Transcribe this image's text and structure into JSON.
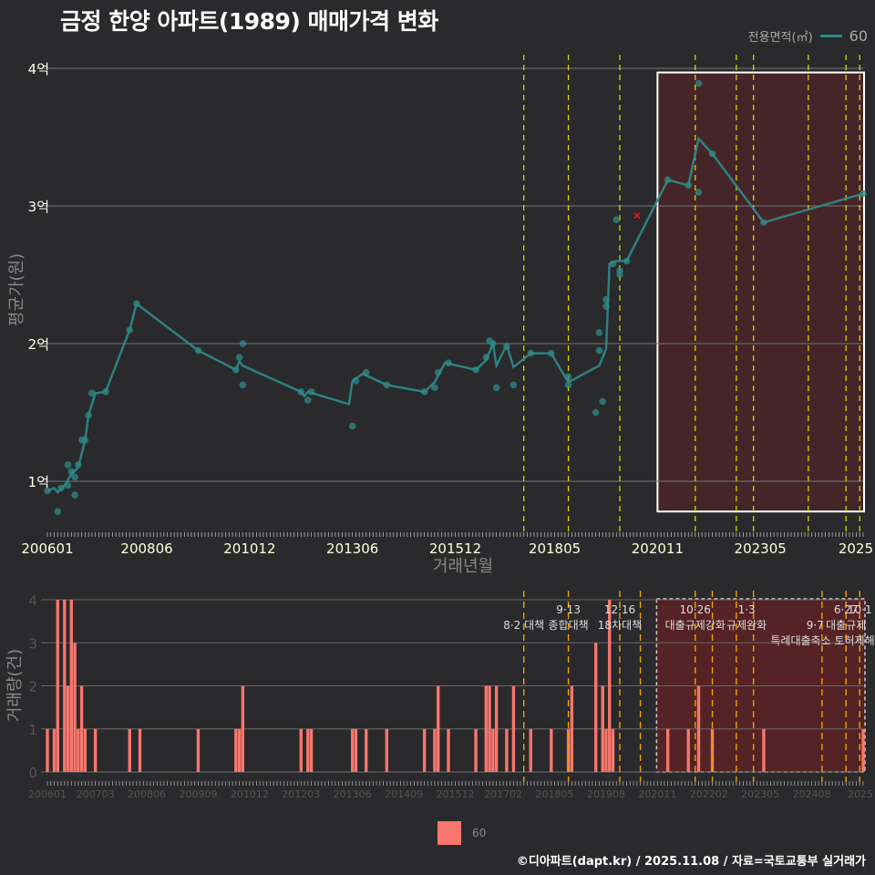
{
  "title": "금정 한양 아파트(1989) 매매가격 변화",
  "legend_top": {
    "title": "전용면적(㎡)",
    "label": "60",
    "color": "#2e8b8b"
  },
  "legend_bottom": {
    "label": "60",
    "color": "#f8766d"
  },
  "footer": "©디아파트(dapt.kr) / 2025.11.08 / 자료=국토교통부 실거래가",
  "chart_data": [
    {
      "type": "line",
      "title": "금정 한양 아파트(1989) 매매가격 변화",
      "xlabel": "거래년월",
      "ylabel": "평균가(원)",
      "x_tick_labels": [
        "200601",
        "200806",
        "201012",
        "201306",
        "201512",
        "201805",
        "202011",
        "202305",
        "2025"
      ],
      "y_tick_labels": [
        "1억",
        "2억",
        "3억",
        "4억"
      ],
      "ylim": [
        0.7,
        4.05
      ],
      "y_unit": "억원",
      "grid": true,
      "legend_position": "top-right",
      "series": [
        {
          "name": "60",
          "line": [
            [
              "2006-01",
              0.93
            ],
            [
              "2006-03",
              0.95
            ],
            [
              "2006-04",
              0.92
            ],
            [
              "2006-06",
              0.97
            ],
            [
              "2006-08",
              1.05
            ],
            [
              "2006-10",
              1.1
            ],
            [
              "2006-12",
              1.3
            ],
            [
              "2007-01",
              1.48
            ],
            [
              "2007-03",
              1.64
            ],
            [
              "2007-06",
              1.65
            ],
            [
              "2008-01",
              2.1
            ],
            [
              "2008-03",
              2.29
            ],
            [
              "2009-09",
              1.95
            ],
            [
              "2010-08",
              1.81
            ],
            [
              "2010-09",
              1.87
            ],
            [
              "2010-10",
              1.84
            ],
            [
              "2012-03",
              1.65
            ],
            [
              "2012-04",
              1.62
            ],
            [
              "2012-05",
              1.65
            ],
            [
              "2013-05",
              1.56
            ],
            [
              "2013-06",
              1.73
            ],
            [
              "2013-09",
              1.78
            ],
            [
              "2014-04",
              1.7
            ],
            [
              "2015-03",
              1.65
            ],
            [
              "2015-06",
              1.72
            ],
            [
              "2015-09",
              1.86
            ],
            [
              "2016-06",
              1.81
            ],
            [
              "2016-09",
              1.88
            ],
            [
              "2016-11",
              2.0
            ],
            [
              "2016-12",
              1.84
            ],
            [
              "2017-03",
              1.99
            ],
            [
              "2017-05",
              1.83
            ],
            [
              "2017-10",
              1.93
            ],
            [
              "2018-04",
              1.93
            ],
            [
              "2018-08",
              1.76
            ],
            [
              "2018-09",
              1.72
            ],
            [
              "2019-06",
              1.84
            ],
            [
              "2019-08",
              1.96
            ],
            [
              "2019-09",
              2.58
            ],
            [
              "2019-11",
              2.6
            ],
            [
              "2020-02",
              2.6
            ],
            [
              "2021-02",
              3.19
            ],
            [
              "2021-08",
              3.15
            ],
            [
              "2021-11",
              3.49
            ],
            [
              "2022-03",
              3.38
            ],
            [
              "2023-06",
              2.88
            ],
            [
              "2025-11",
              3.09
            ]
          ],
          "points": [
            [
              "2006-01",
              0.93
            ],
            [
              "2006-04",
              0.78
            ],
            [
              "2006-05",
              0.95
            ],
            [
              "2006-07",
              1.12
            ],
            [
              "2006-07",
              0.97
            ],
            [
              "2006-08",
              1.07
            ],
            [
              "2006-09",
              1.03
            ],
            [
              "2006-09",
              0.9
            ],
            [
              "2006-10",
              1.12
            ],
            [
              "2006-11",
              1.3
            ],
            [
              "2006-12",
              1.3
            ],
            [
              "2007-01",
              1.48
            ],
            [
              "2007-02",
              1.64
            ],
            [
              "2007-06",
              1.65
            ],
            [
              "2008-01",
              2.1
            ],
            [
              "2008-03",
              2.29
            ],
            [
              "2009-09",
              1.95
            ],
            [
              "2010-08",
              1.81
            ],
            [
              "2010-09",
              1.9
            ],
            [
              "2010-10",
              2.0
            ],
            [
              "2010-10",
              1.7
            ],
            [
              "2012-03",
              1.65
            ],
            [
              "2012-05",
              1.59
            ],
            [
              "2012-06",
              1.65
            ],
            [
              "2013-06",
              1.4
            ],
            [
              "2013-07",
              1.73
            ],
            [
              "2013-10",
              1.79
            ],
            [
              "2014-04",
              1.7
            ],
            [
              "2015-03",
              1.65
            ],
            [
              "2015-06",
              1.68
            ],
            [
              "2015-07",
              1.79
            ],
            [
              "2015-10",
              1.86
            ],
            [
              "2016-06",
              1.81
            ],
            [
              "2016-09",
              1.9
            ],
            [
              "2016-10",
              2.02
            ],
            [
              "2016-11",
              2.0
            ],
            [
              "2016-12",
              1.68
            ],
            [
              "2017-03",
              1.98
            ],
            [
              "2017-05",
              1.7
            ],
            [
              "2017-10",
              1.93
            ],
            [
              "2018-04",
              1.93
            ],
            [
              "2018-09",
              1.76
            ],
            [
              "2018-09",
              1.7
            ],
            [
              "2019-05",
              1.5
            ],
            [
              "2019-06",
              1.95
            ],
            [
              "2019-06",
              2.08
            ],
            [
              "2019-07",
              1.58
            ],
            [
              "2019-08",
              2.32
            ],
            [
              "2019-08",
              2.27
            ],
            [
              "2019-10",
              2.58
            ],
            [
              "2019-11",
              2.9
            ],
            [
              "2019-12",
              2.5
            ],
            [
              "2019-12",
              2.53
            ],
            [
              "2020-02",
              2.6
            ],
            [
              "2021-02",
              3.19
            ],
            [
              "2021-08",
              3.15
            ],
            [
              "2021-11",
              3.89
            ],
            [
              "2021-11",
              3.1
            ],
            [
              "2022-03",
              3.38
            ],
            [
              "2023-06",
              2.88
            ],
            [
              "2025-11",
              3.09
            ]
          ],
          "cancelled": [
            [
              "2020-05",
              2.93
            ]
          ]
        }
      ],
      "policy_lines": [
        "2017-08",
        "2018-09",
        "2019-12",
        "2021-10",
        "2022-10",
        "2023-03",
        "2024-07",
        "2025-06",
        "2025-10"
      ],
      "highlight_box": {
        "from": "2020-11",
        "to": "2025-11",
        "ymin": 0.78,
        "ymax": 3.97
      }
    },
    {
      "type": "bar",
      "xlabel": "",
      "ylabel": "거래량(건)",
      "x_tick_labels": [
        "200601",
        "200703",
        "200806",
        "200909",
        "201012",
        "201203",
        "201306",
        "201409",
        "201512",
        "201702",
        "201805",
        "201908",
        "202011",
        "202202",
        "202305",
        "202408",
        "2025"
      ],
      "y_tick_labels": [
        "0",
        "1",
        "2",
        "3",
        "4"
      ],
      "ylim": [
        0,
        4.05
      ],
      "series": [
        {
          "name": "60",
          "values": [
            [
              "2006-01",
              1
            ],
            [
              "2006-03",
              1
            ],
            [
              "2006-04",
              4
            ],
            [
              "2006-06",
              4
            ],
            [
              "2006-07",
              2
            ],
            [
              "2006-08",
              4
            ],
            [
              "2006-09",
              3
            ],
            [
              "2006-10",
              1
            ],
            [
              "2006-11",
              2
            ],
            [
              "2006-12",
              1
            ],
            [
              "2007-03",
              1
            ],
            [
              "2008-01",
              1
            ],
            [
              "2008-04",
              1
            ],
            [
              "2009-09",
              1
            ],
            [
              "2010-08",
              1
            ],
            [
              "2010-09",
              1
            ],
            [
              "2010-10",
              2
            ],
            [
              "2012-03",
              1
            ],
            [
              "2012-05",
              1
            ],
            [
              "2012-06",
              1
            ],
            [
              "2013-06",
              1
            ],
            [
              "2013-07",
              1
            ],
            [
              "2013-10",
              1
            ],
            [
              "2014-04",
              1
            ],
            [
              "2015-03",
              1
            ],
            [
              "2015-06",
              1
            ],
            [
              "2015-07",
              2
            ],
            [
              "2015-10",
              1
            ],
            [
              "2016-06",
              1
            ],
            [
              "2016-09",
              2
            ],
            [
              "2016-10",
              2
            ],
            [
              "2016-11",
              1
            ],
            [
              "2016-12",
              2
            ],
            [
              "2017-03",
              1
            ],
            [
              "2017-05",
              2
            ],
            [
              "2017-10",
              1
            ],
            [
              "2018-04",
              1
            ],
            [
              "2018-09",
              1
            ],
            [
              "2018-10",
              2
            ],
            [
              "2019-05",
              3
            ],
            [
              "2019-07",
              2
            ],
            [
              "2019-08",
              1
            ],
            [
              "2019-09",
              4
            ],
            [
              "2019-10",
              1
            ],
            [
              "2021-02",
              1
            ],
            [
              "2021-08",
              1
            ],
            [
              "2021-11",
              2
            ],
            [
              "2022-03",
              1
            ],
            [
              "2023-06",
              1
            ],
            [
              "2025-11",
              1
            ]
          ]
        }
      ],
      "policy_lines": [
        "2017-08",
        "2018-09",
        "2019-12",
        "2020-06",
        "2021-10",
        "2022-03",
        "2022-10",
        "2023-03",
        "2024-11",
        "2025-06",
        "2025-10"
      ],
      "annotations": [
        {
          "date": "2017-08",
          "top": "",
          "bottom": "8·2 대책"
        },
        {
          "date": "2018-09",
          "top": "9·13",
          "bottom": "종합대책"
        },
        {
          "date": "2019-12",
          "top": "12·16",
          "bottom": "18차대책"
        },
        {
          "date": "2021-10",
          "top": "10·26",
          "bottom": "대출규제강화"
        },
        {
          "date": "2023-01",
          "top": "1·3",
          "bottom": "규제완화"
        },
        {
          "date": "2024-09",
          "top": "",
          "bottom": "9·7"
        },
        {
          "date": "2024-02",
          "top": "",
          "bottom": "특례대출축소 토허제해제"
        },
        {
          "date": "2025-06",
          "top": "6·27",
          "bottom": "대출규제"
        },
        {
          "date": "2025-10",
          "top": "10·1",
          "bottom": ""
        }
      ],
      "highlight_box": {
        "from": "2020-11",
        "to": "2025-11",
        "ymin": 0,
        "ymax": 4
      }
    }
  ]
}
